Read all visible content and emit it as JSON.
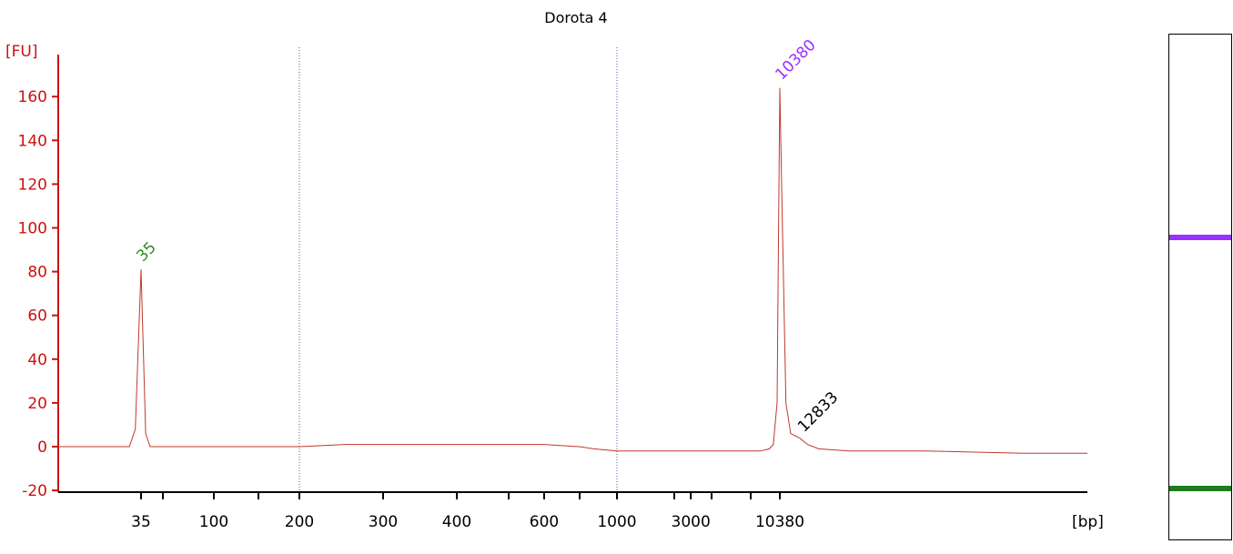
{
  "chart_data": {
    "type": "line",
    "title": "Dorota 4",
    "ylabel": "[FU]",
    "xlabel": "[bp]",
    "ylim": [
      -20,
      170
    ],
    "yticks": [
      -20,
      0,
      20,
      40,
      60,
      80,
      100,
      120,
      140,
      160
    ],
    "x_tick_labels": [
      "35",
      "100",
      "200",
      "300",
      "400",
      "600",
      "1000",
      "3000",
      "10380"
    ],
    "x_scale": "nonlinear (ladder-based)",
    "grid": "vertical dotted lines at 200 and 1000 bp",
    "series": [
      {
        "color": "#c0392b",
        "x": [
          23,
          30,
          33,
          34,
          35,
          36,
          37,
          40,
          60,
          100,
          150,
          180,
          200,
          250,
          300,
          400,
          500,
          600,
          700,
          800,
          1000,
          1500,
          2000,
          3000,
          5000,
          7000,
          8000,
          9000,
          9500,
          10000,
          10200,
          10380,
          10600,
          11000,
          11500,
          12000,
          12500,
          12833,
          13500,
          15000,
          20000,
          30000,
          50000,
          70000
        ],
        "y": [
          0,
          0,
          0,
          8,
          81,
          6,
          0,
          0,
          0,
          0,
          0,
          0,
          0,
          1,
          1,
          1,
          1,
          1,
          0,
          -1,
          -2,
          -2,
          -2,
          -2,
          -2,
          -2,
          -2,
          -1,
          1,
          20,
          100,
          164,
          110,
          20,
          6,
          5,
          4,
          3,
          1,
          -1,
          -2,
          -2,
          -3,
          -3
        ]
      }
    ],
    "peak_labels": [
      {
        "label": "35",
        "x": 35,
        "y": 81,
        "color": "#2e8b22"
      },
      {
        "label": "10380",
        "x": 10380,
        "y": 164,
        "color": "#9b30ff"
      },
      {
        "label": "12833",
        "x": 12833,
        "y": 3,
        "color": "#000000"
      }
    ],
    "gel_bands": [
      {
        "color": "#9b30ff",
        "level": 0.4
      },
      {
        "color": "#1e7b1e",
        "level": 0.895
      }
    ]
  }
}
